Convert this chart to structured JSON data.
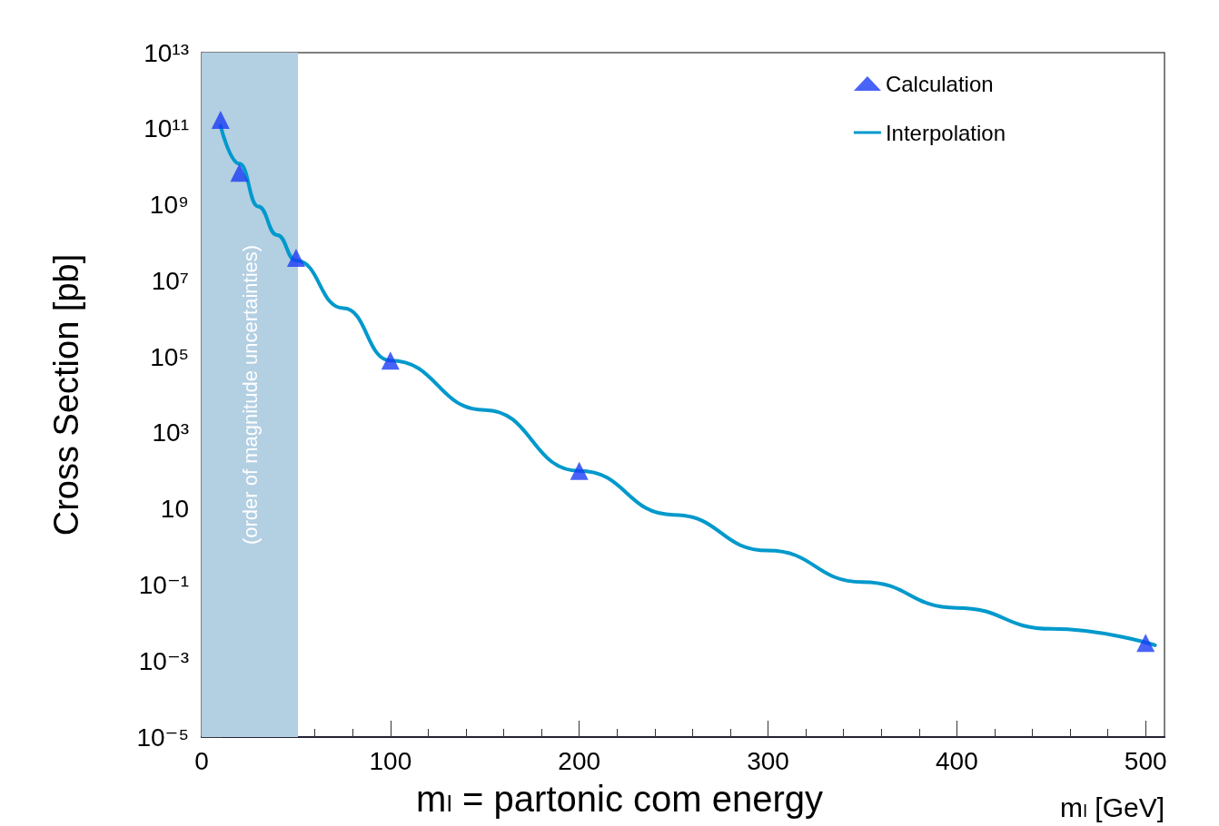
{
  "chart_data": {
    "type": "line",
    "xlabel": "mₗ [GeV]",
    "ylabel": "Cross Section [pb]",
    "annotations": [
      "mₗ = partonic com energy"
    ],
    "log": "y",
    "grid": false,
    "legend": "top right",
    "xlim": [
      0,
      510
    ],
    "xticks": [
      0,
      100,
      200,
      300,
      400,
      500
    ],
    "ylim": [
      1e-05,
      10000000000000.0
    ],
    "yticks": [
      {
        "value": 1e-05,
        "label": "10⁻⁵"
      },
      {
        "value": 0.001,
        "label": "10⁻³"
      },
      {
        "value": 0.1,
        "label": "10⁻¹"
      },
      10,
      {
        "value": 1000,
        "label": "10³"
      },
      {
        "value": 100000,
        "label": "10⁵"
      },
      {
        "value": 10000000.0,
        "label": "10⁷"
      },
      {
        "value": 1000000000.0,
        "label": "10⁹"
      },
      {
        "value": 100000000000.0,
        "label": "10¹¹"
      },
      {
        "value": 10000000000000.0,
        "label": "10¹³"
      }
    ],
    "bands": [
      {
        "axis": "x",
        "from": 0,
        "to": 51,
        "label": "(order of magnitude uncertainties)",
        "color": "#b3cfe2"
      }
    ],
    "series": [
      {
        "name": "Calculation",
        "type": "scatter",
        "marker": "triangle",
        "color": "#1a3cf5",
        "x": [
          10,
          20,
          50,
          100,
          200,
          500
        ],
        "values": [
          170000000000.0,
          7000000000.0,
          40000000.0,
          80000.0,
          100,
          0.003
        ]
      },
      {
        "name": "Interpolation",
        "marker": "none",
        "line_style": "solid",
        "color": "#0099cc",
        "x": [
          10,
          20,
          30,
          40,
          50,
          75,
          100,
          150,
          200,
          250,
          300,
          350,
          400,
          450,
          505
        ],
        "values": [
          120000000000.0,
          12000000000.0,
          900000000.0,
          160000000.0,
          34000000.0,
          1900000.0,
          80000.0,
          4000,
          100,
          7,
          0.8,
          0.12,
          0.025,
          0.007,
          0.0026
        ]
      }
    ]
  }
}
